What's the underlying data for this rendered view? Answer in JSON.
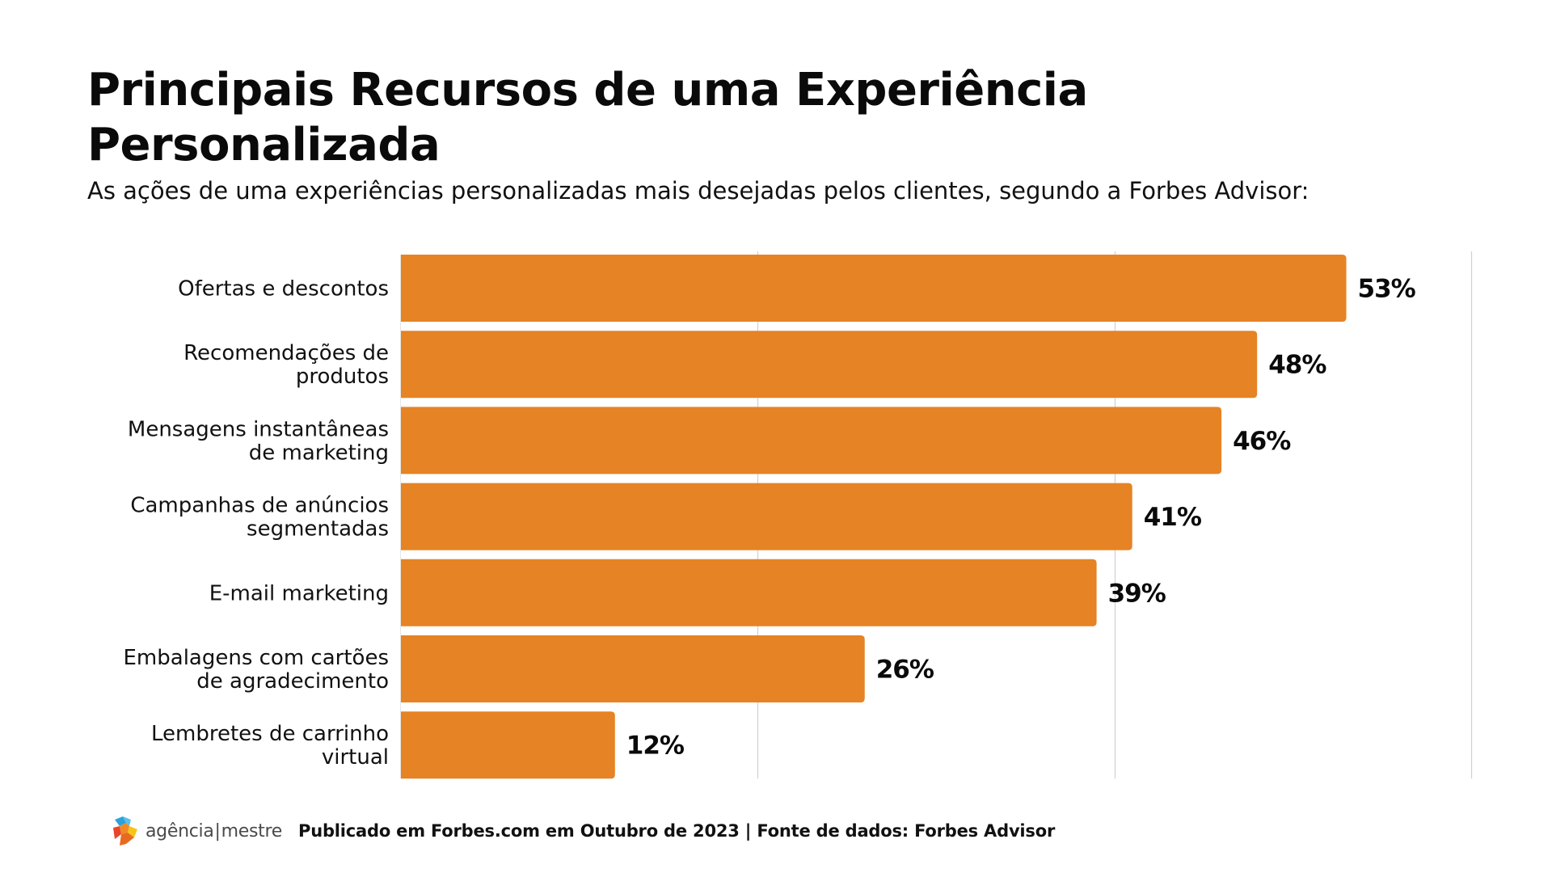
{
  "header": {
    "title": "Principais Recursos de uma Experiência Personalizada",
    "subtitle": "As ações de uma experiências personalizadas mais desejadas pelos clientes, segundo a Forbes Advisor:"
  },
  "footer": {
    "logo_text_left": "agência",
    "logo_separator": "|",
    "logo_text_right": "mestre",
    "note": "Publicado em Forbes.com em Outubro de 2023 | Fonte de dados: Forbes Advisor"
  },
  "colors": {
    "bar": "#E68324",
    "grid": "#D0D0D0",
    "text": "#111111"
  },
  "chart_data": {
    "type": "bar",
    "orientation": "horizontal",
    "title": "Principais Recursos de uma Experiência Personalizada",
    "subtitle": "As ações de uma experiências personalizadas mais desejadas pelos clientes, segundo a Forbes Advisor:",
    "categories": [
      [
        "Ofertas e descontos"
      ],
      [
        "Recomendações de",
        "produtos"
      ],
      [
        "Mensagens instantâneas",
        "de marketing"
      ],
      [
        "Campanhas de anúncios",
        "segmentadas"
      ],
      [
        "E-mail marketing"
      ],
      [
        "Embalagens com cartões",
        "de agradecimento"
      ],
      [
        "Lembretes de carrinho",
        "virtual"
      ]
    ],
    "values": [
      53,
      48,
      46,
      41,
      39,
      26,
      12
    ],
    "value_labels": [
      "53%",
      "48%",
      "46%",
      "41%",
      "39%",
      "26%",
      "12%"
    ],
    "unit": "%",
    "xlim": [
      0,
      60
    ],
    "gridlines": [
      20,
      40,
      60
    ],
    "grid": true,
    "xlabel": "",
    "ylabel": "",
    "legend": "none"
  }
}
